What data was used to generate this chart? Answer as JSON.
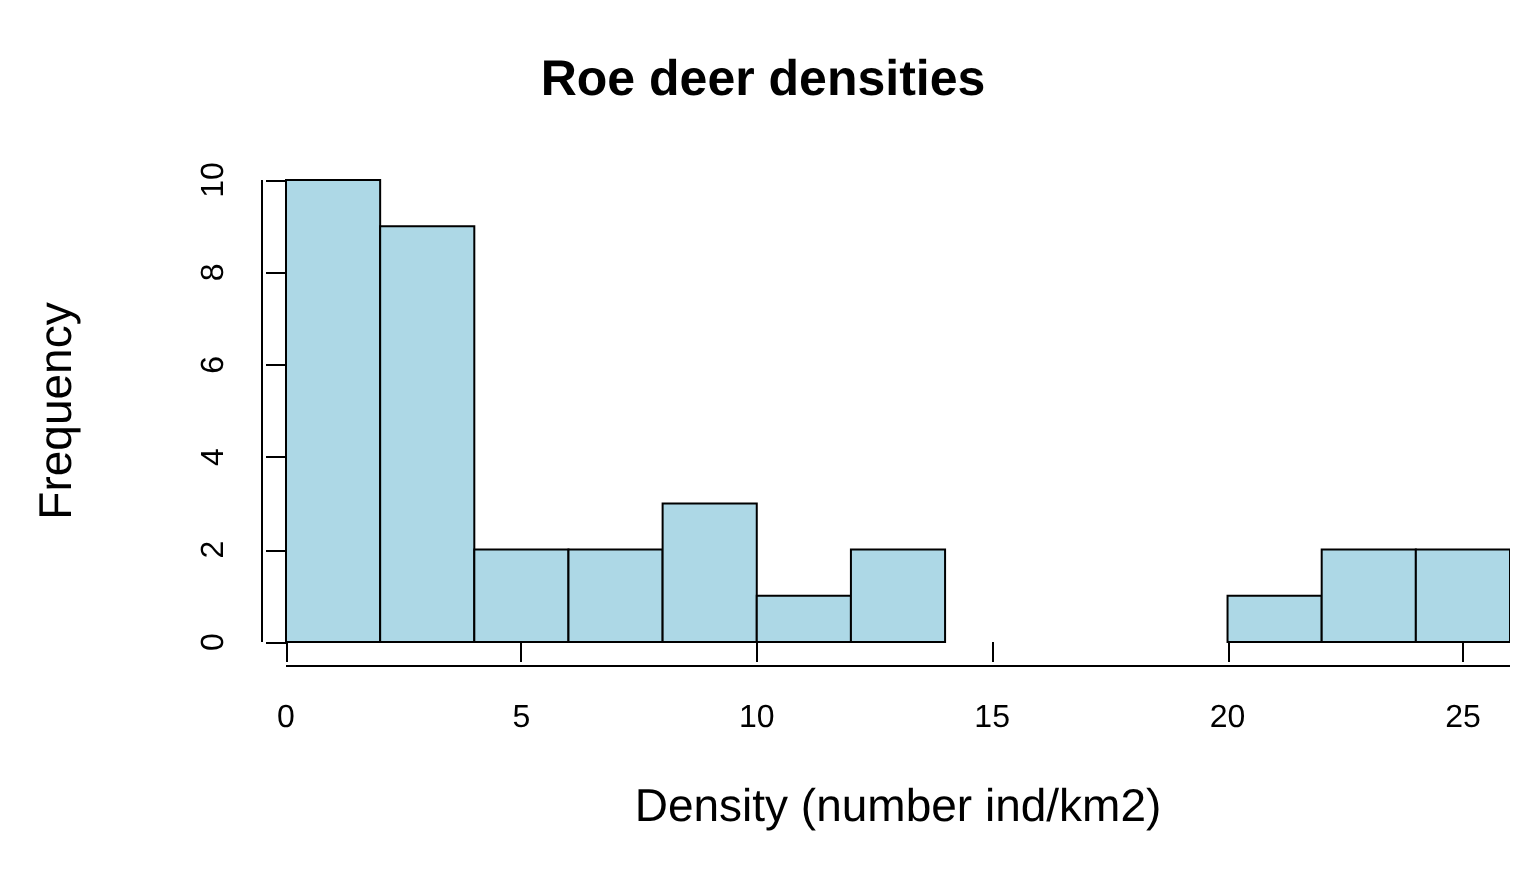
{
  "chart_data": {
    "type": "histogram",
    "title": "Roe deer densities",
    "xlabel": "Density (number ind/km2)",
    "ylabel": "Frequency",
    "bins": [
      0,
      2,
      4,
      6,
      8,
      10,
      12,
      14,
      16,
      18,
      20,
      22,
      24,
      26
    ],
    "values": [
      10,
      9,
      2,
      2,
      3,
      1,
      2,
      0,
      0,
      0,
      1,
      2,
      2
    ],
    "color": "#add8e6",
    "xlim": [
      0,
      26
    ],
    "xticks": [
      0,
      5,
      10,
      15,
      20,
      25
    ],
    "ylim": [
      0,
      10
    ],
    "yticks": [
      0,
      2,
      4,
      6,
      8,
      10
    ],
    "grid": false
  }
}
